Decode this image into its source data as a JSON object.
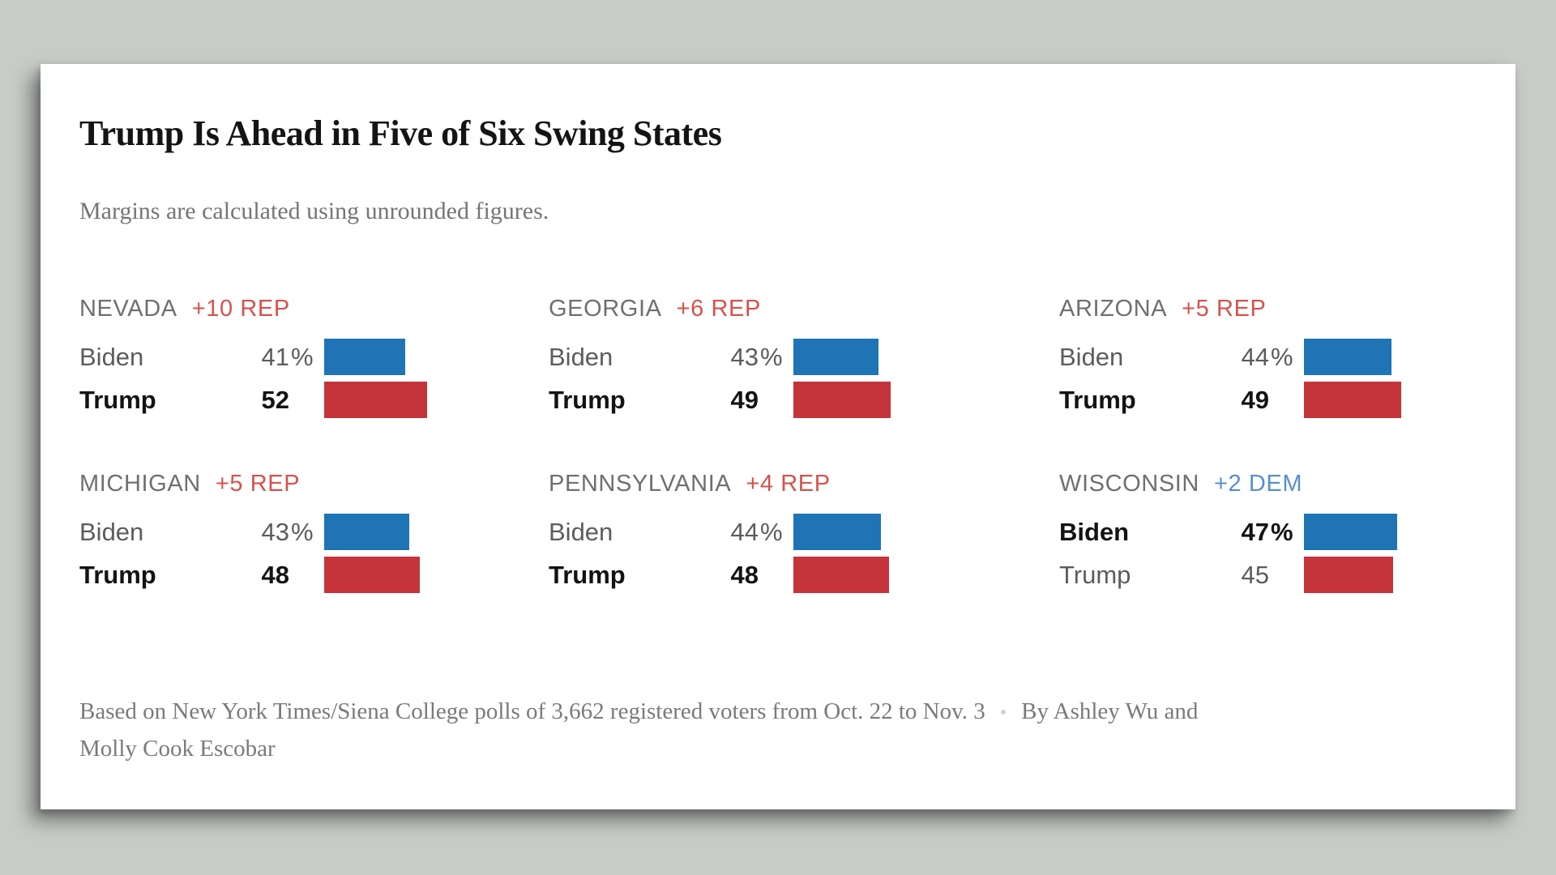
{
  "title": "Trump Is Ahead in Five of Six Swing States",
  "subtitle": "Margins are calculated using unrounded figures.",
  "footer": {
    "source": "Based on New York Times/Siena College polls of 3,662 registered voters from Oct. 22 to Nov. 3",
    "separator": "•",
    "byline": "By Ashley Wu and Molly Cook Escobar"
  },
  "percent_suffix": "%",
  "colors": {
    "background": "#c7ccc7",
    "card": "#ffffff",
    "biden_bar": "#1e74b5",
    "trump_bar": "#c5343a",
    "rep_margin_text": "#d5524e",
    "dem_margin_text": "#568fd0",
    "state_name_text": "#6f6f6f",
    "muted_text": "#5c5c5c",
    "winner_text": "#131313"
  },
  "chart_data": {
    "type": "bar",
    "title": "Trump Is Ahead in Five of Six Swing States",
    "subtitle": "Margins are calculated using unrounded figures.",
    "categories": [
      "Biden",
      "Trump"
    ],
    "value_format": "percent",
    "xlim": [
      0,
      100
    ],
    "states": [
      {
        "name": "NEVADA",
        "margin": "+10 REP",
        "margin_party": "REP",
        "leader": "Trump",
        "biden": 41,
        "trump": 52
      },
      {
        "name": "GEORGIA",
        "margin": "+6 REP",
        "margin_party": "REP",
        "leader": "Trump",
        "biden": 43,
        "trump": 49
      },
      {
        "name": "ARIZONA",
        "margin": "+5 REP",
        "margin_party": "REP",
        "leader": "Trump",
        "biden": 44,
        "trump": 49
      },
      {
        "name": "MICHIGAN",
        "margin": "+5 REP",
        "margin_party": "REP",
        "leader": "Trump",
        "biden": 43,
        "trump": 48
      },
      {
        "name": "PENNSYLVANIA",
        "margin": "+4 REP",
        "margin_party": "REP",
        "leader": "Trump",
        "biden": 44,
        "trump": 48
      },
      {
        "name": "WISCONSIN",
        "margin": "+2 DEM",
        "margin_party": "DEM",
        "leader": "Biden",
        "biden": 47,
        "trump": 45
      }
    ]
  }
}
